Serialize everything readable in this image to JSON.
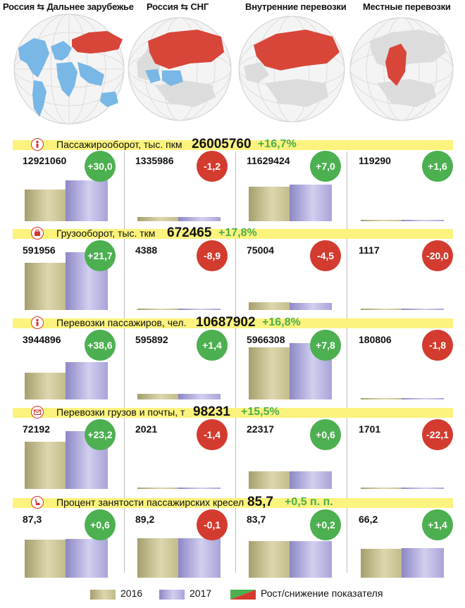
{
  "columns": [
    {
      "title": "Россия ⇆ Дальнее зарубежье"
    },
    {
      "title": "Россия ⇆ СНГ"
    },
    {
      "title": "Внутренние перевозки"
    },
    {
      "title": "Местные перевозки"
    }
  ],
  "colors": {
    "y2016": "#c9c393",
    "y2017": "#b3aee2",
    "up": "#4caf50",
    "down": "#d33b2f",
    "band": "#fbf37d",
    "russia": "#d8463a",
    "highlight": "#78b7e6",
    "land": "#d9d9d9"
  },
  "chart_data": [
    {
      "type": "bar",
      "title": "Пассажирооборот, тыс. пкм",
      "icon": "person-icon",
      "total": "26005760",
      "change": "+16,7%",
      "cells": [
        {
          "value": "12921060",
          "change": "+30,0",
          "dir": "up",
          "v2016": 9939277,
          "v2017": 12921060
        },
        {
          "value": "1335986",
          "change": "-1,2",
          "dir": "down",
          "v2016": 1352212,
          "v2017": 1335986
        },
        {
          "value": "11629424",
          "change": "+7,0",
          "dir": "up",
          "v2016": 10868620,
          "v2017": 11629424
        },
        {
          "value": "119290",
          "change": "+1,6",
          "dir": "up",
          "v2016": 117411,
          "v2017": 119290
        }
      ]
    },
    {
      "type": "bar",
      "title": "Грузооборот, тыс. ткм",
      "icon": "cargo-icon",
      "total": "672465",
      "change": "+17,8%",
      "cells": [
        {
          "value": "591956",
          "change": "+21,7",
          "dir": "up",
          "v2016": 486406,
          "v2017": 591956
        },
        {
          "value": "4388",
          "change": "-8,9",
          "dir": "down",
          "v2016": 4817,
          "v2017": 4388
        },
        {
          "value": "75004",
          "change": "-4,5",
          "dir": "down",
          "v2016": 78538,
          "v2017": 75004
        },
        {
          "value": "1117",
          "change": "-20,0",
          "dir": "down",
          "v2016": 1396,
          "v2017": 1117
        }
      ]
    },
    {
      "type": "bar",
      "title": "Перевозки пассажиров, чел.",
      "icon": "person-icon",
      "total": "10687902",
      "change": "+16,8%",
      "cells": [
        {
          "value": "3944896",
          "change": "+38,6",
          "dir": "up",
          "v2016": 2846245,
          "v2017": 3944896
        },
        {
          "value": "595892",
          "change": "+1,4",
          "dir": "up",
          "v2016": 587665,
          "v2017": 595892
        },
        {
          "value": "5966308",
          "change": "+7,8",
          "dir": "up",
          "v2016": 5534609,
          "v2017": 5966308
        },
        {
          "value": "180806",
          "change": "-1,8",
          "dir": "down",
          "v2016": 184120,
          "v2017": 180806
        }
      ]
    },
    {
      "type": "bar",
      "title": "Перевозки грузов и почты, т",
      "icon": "mail-icon",
      "total": "98231",
      "change": "+15,5%",
      "cells": [
        {
          "value": "72192",
          "change": "+23,2",
          "dir": "up",
          "v2016": 58597,
          "v2017": 72192
        },
        {
          "value": "2021",
          "change": "-1,4",
          "dir": "down",
          "v2016": 2050,
          "v2017": 2021
        },
        {
          "value": "22317",
          "change": "+0,6",
          "dir": "up",
          "v2016": 22184,
          "v2017": 22317
        },
        {
          "value": "1701",
          "change": "-22,1",
          "dir": "down",
          "v2016": 2184,
          "v2017": 1701
        }
      ]
    },
    {
      "type": "bar",
      "title": "Процент занятости пассажирских кресел",
      "icon": "seat-icon",
      "total": "85,7",
      "change": "+0,5 п. п.",
      "cells": [
        {
          "value": "87,3",
          "change": "+0,6",
          "dir": "up",
          "v2016": 86.7,
          "v2017": 87.3
        },
        {
          "value": "89,2",
          "change": "-0,1",
          "dir": "down",
          "v2016": 89.3,
          "v2017": 89.2
        },
        {
          "value": "83,7",
          "change": "+0,2",
          "dir": "up",
          "v2016": 83.5,
          "v2017": 83.7
        },
        {
          "value": "66,2",
          "change": "+1,4",
          "dir": "up",
          "v2016": 64.8,
          "v2017": 66.2
        }
      ]
    }
  ],
  "legend": {
    "y2016": "2016",
    "y2017": "2017",
    "change": "Рост/снижение показателя"
  }
}
